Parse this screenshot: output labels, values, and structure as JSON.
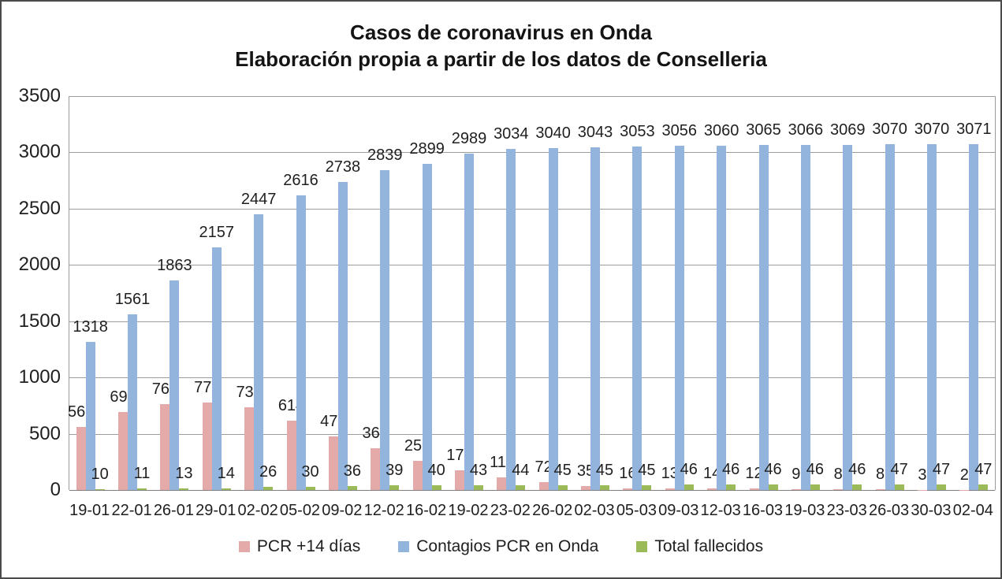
{
  "chart_data": {
    "type": "bar",
    "title": "Casos de coronavirus en Onda",
    "subtitle": "Elaboración propia a partir de los datos de Conselleria",
    "categories": [
      "19-01",
      "22-01",
      "26-01",
      "29-01",
      "02-02",
      "05-02",
      "09-02",
      "12-02",
      "16-02",
      "19-02",
      "23-02",
      "26-02",
      "02-03",
      "05-03",
      "09-03",
      "12-03",
      "16-03",
      "19-03",
      "23-03",
      "26-03",
      "30-03",
      "02-04"
    ],
    "series": [
      {
        "name": "PCR +14 días",
        "color": "#E4A9A9",
        "values": [
          561,
          692,
          765,
          776,
          733,
          614,
          473,
          368,
          256,
          173,
          111,
          72,
          35,
          16,
          13,
          14,
          12,
          9,
          8,
          8,
          3,
          2
        ]
      },
      {
        "name": "Contagios PCR en Onda",
        "color": "#93B5DD",
        "values": [
          1318,
          1561,
          1863,
          2157,
          2447,
          2616,
          2738,
          2839,
          2899,
          2989,
          3034,
          3040,
          3043,
          3053,
          3056,
          3060,
          3065,
          3066,
          3069,
          3070,
          3070,
          3071
        ]
      },
      {
        "name": "Total fallecidos",
        "color": "#9BBB59",
        "values": [
          10,
          11,
          13,
          14,
          26,
          30,
          36,
          39,
          40,
          43,
          44,
          45,
          45,
          45,
          46,
          46,
          46,
          46,
          46,
          47,
          47,
          47
        ]
      }
    ],
    "ylim": [
      0,
      3500
    ],
    "ytick_step": 500,
    "yticks": [
      "0",
      "500",
      "1000",
      "1500",
      "2000",
      "2500",
      "3000",
      "3500"
    ],
    "grid": true,
    "legend_position": "bottom",
    "data_labels": "outside-end",
    "colors": {
      "grid": "#9C9C9C",
      "axis": "#7F7F7F",
      "text": "#1F1F1F",
      "background": "#FFFFFF"
    }
  }
}
